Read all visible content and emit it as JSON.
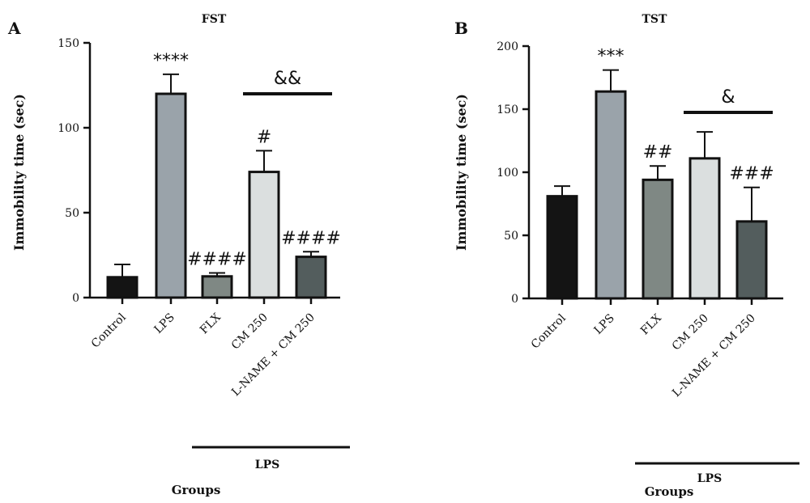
{
  "chart_data": [
    {
      "type": "bar",
      "panel_label": "A",
      "title": "FST",
      "ylabel": "Immobility time (sec)",
      "xlabel": "Groups",
      "group_bracket_label": "LPS",
      "ylim": [
        0,
        150
      ],
      "yticks": [
        0,
        50,
        100,
        150
      ],
      "categories": [
        "Control",
        "LPS",
        "FLX",
        "CM 250",
        "L-NAME + CM 250"
      ],
      "values": [
        12,
        120,
        12.5,
        74,
        24
      ],
      "errors": [
        7.5,
        11.5,
        2,
        12.5,
        3
      ],
      "colors": [
        "#141414",
        "#9aa3aa",
        "#7f8884",
        "#dbdfdf",
        "#535d5d"
      ],
      "annotations": [
        "",
        "****",
        "####",
        "#",
        "####"
      ],
      "comparison": {
        "label": "&&",
        "from": 3,
        "to": 4
      }
    },
    {
      "type": "bar",
      "panel_label": "B",
      "title": "TST",
      "ylabel": "Immobility time (sec)",
      "xlabel": "Groups",
      "group_bracket_label": "LPS",
      "ylim": [
        0,
        200
      ],
      "yticks": [
        0,
        50,
        100,
        150,
        200
      ],
      "categories": [
        "Control",
        "LPS",
        "FLX",
        "CM 250",
        "L-NAME + CM 250"
      ],
      "values": [
        81,
        164,
        94,
        111,
        61
      ],
      "errors": [
        8,
        17,
        11,
        21,
        27
      ],
      "colors": [
        "#141414",
        "#9aa3aa",
        "#7f8884",
        "#dbdfdf",
        "#535d5d"
      ],
      "annotations": [
        "",
        "***",
        "##",
        "",
        "###"
      ],
      "comparison": {
        "label": "&",
        "from": 3,
        "to": 4
      }
    }
  ]
}
